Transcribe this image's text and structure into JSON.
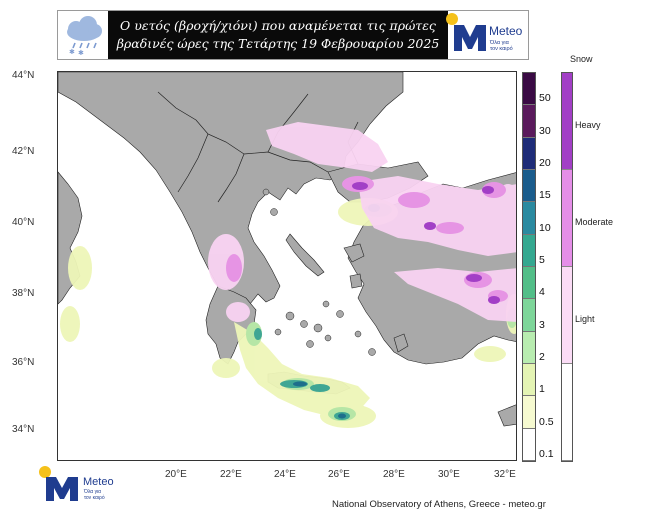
{
  "header": {
    "title_line1": "Ο υετός (βροχή/χιόνι) που αναμένεται τις πρώτες",
    "title_line2": "βραδινές ώρες της Τετάρτης 19 Φεβρουαρίου  2025",
    "logo_name": "Meteo",
    "logo_tagline_1": "Όλα για",
    "logo_tagline_2": "τον καιρό",
    "icon": "rain-snow-cloud-icon"
  },
  "map": {
    "region": "Greece and Aegean",
    "lat_labels": [
      "44°N",
      "42°N",
      "40°N",
      "38°N",
      "36°N",
      "34°N"
    ],
    "lon_labels": [
      "20°E",
      "22°E",
      "24°E",
      "26°E",
      "28°E",
      "30°E",
      "32°E"
    ],
    "land_color": "#a9a9a9",
    "sea_color": "#ffffff"
  },
  "rain_legend": {
    "labels": [
      "50",
      "30",
      "20",
      "15",
      "10",
      "5",
      "4",
      "3",
      "2",
      "1",
      "0.5",
      "0.1"
    ],
    "colors": [
      "#3a0a44",
      "#5a1a5c",
      "#1e2c78",
      "#1a5c8c",
      "#2a8aa0",
      "#34a890",
      "#52be88",
      "#7ed69a",
      "#b8ecb0",
      "#e4f4b4",
      "#f6fad0",
      "#ffffff"
    ]
  },
  "snow_legend": {
    "title": "Snow",
    "labels": [
      "Heavy",
      "Moderate",
      "Light"
    ],
    "colors": [
      "#a23fc6",
      "#e58ee8",
      "#fbdcf6",
      "#ffffff"
    ]
  },
  "footer": {
    "credit": "National Observatory of Athens, Greece - meteo.gr"
  }
}
